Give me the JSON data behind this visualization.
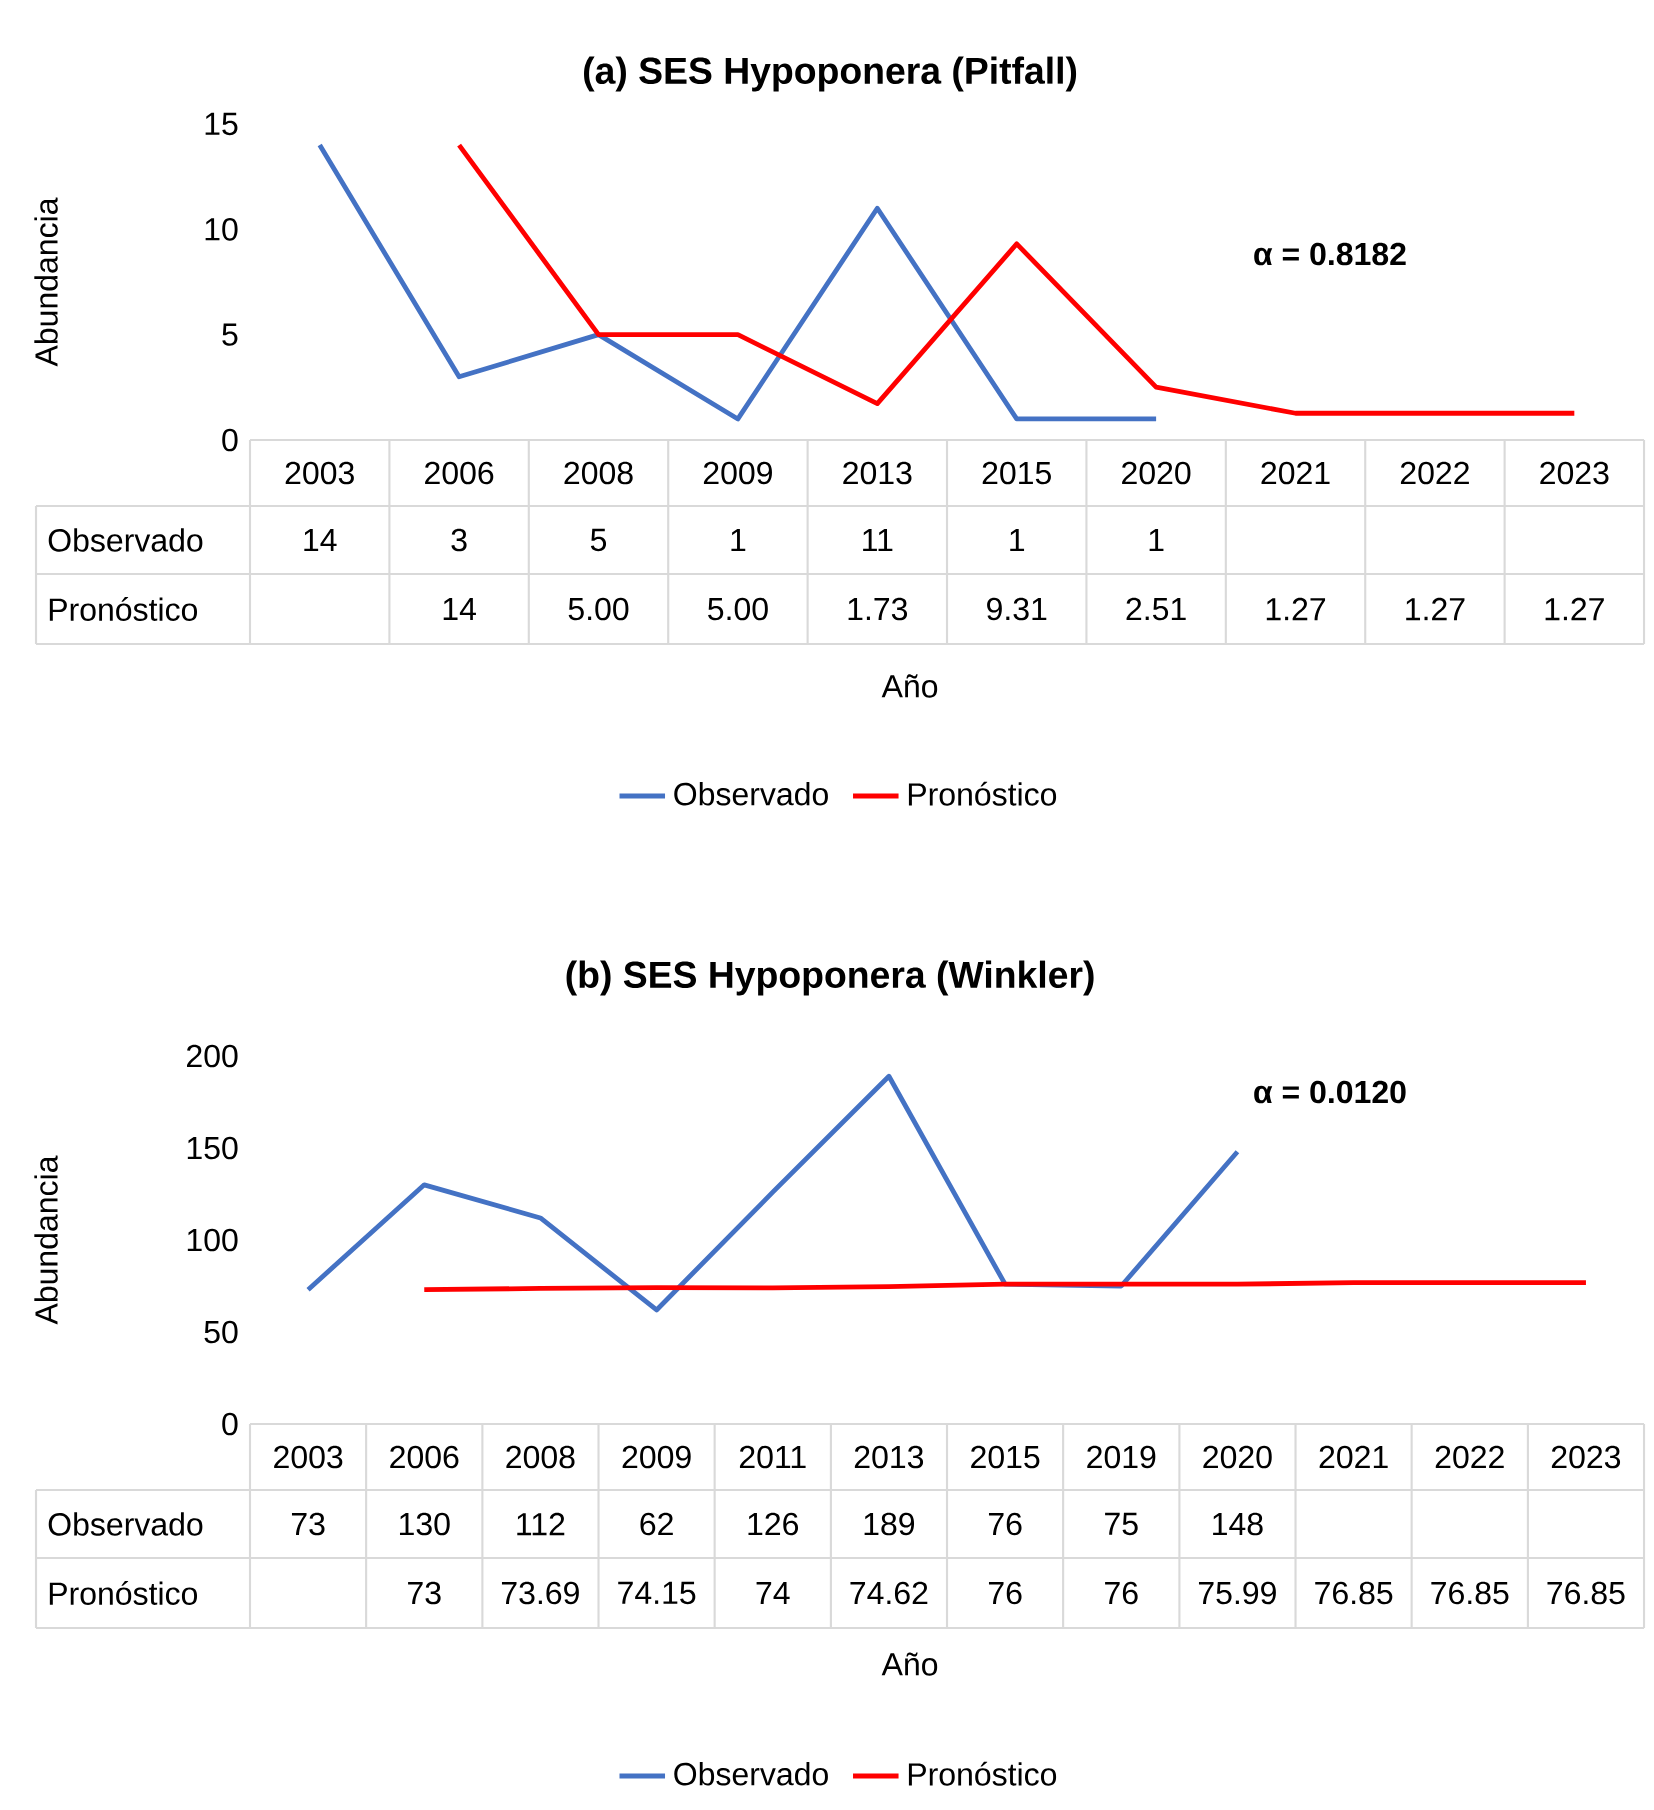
{
  "chart_data": [
    {
      "type": "line",
      "title": "(a) SES Hypoponera (Pitfall)",
      "xlabel": "Año",
      "ylabel": "Abundancia",
      "categories": [
        "2003",
        "2006",
        "2008",
        "2009",
        "2013",
        "2015",
        "2020",
        "2021",
        "2022",
        "2023"
      ],
      "series": [
        {
          "name": "Observado",
          "color": "#4472c4",
          "values": [
            14,
            3,
            5,
            1,
            11,
            1,
            1,
            null,
            null,
            null
          ],
          "value_labels": [
            "14",
            "3",
            "5",
            "1",
            "11",
            "1",
            "1",
            null,
            null,
            null
          ]
        },
        {
          "name": "Pronóstico",
          "color": "#ff0000",
          "values": [
            null,
            14,
            5.0,
            5.0,
            1.73,
            9.31,
            2.51,
            1.27,
            1.27,
            1.27
          ],
          "value_labels": [
            null,
            "14",
            "5.00",
            "5.00",
            "1.73",
            "9.31",
            "2.51",
            "1.27",
            "1.27",
            "1.27"
          ]
        }
      ],
      "ylim": [
        0,
        15
      ],
      "yticks": [
        0,
        5,
        10,
        15
      ],
      "legend": "bottom",
      "annotations": [
        "α = 0.8182"
      ]
    },
    {
      "type": "line",
      "title": "(b) SES Hypoponera (Winkler)",
      "xlabel": "Año",
      "ylabel": "Abundancia",
      "categories": [
        "2003",
        "2006",
        "2008",
        "2009",
        "2011",
        "2013",
        "2015",
        "2019",
        "2020",
        "2021",
        "2022",
        "2023"
      ],
      "series": [
        {
          "name": "Observado",
          "color": "#4472c4",
          "values": [
            73,
            130,
            112,
            62,
            126,
            189,
            76,
            75,
            148,
            null,
            null,
            null
          ],
          "value_labels": [
            "73",
            "130",
            "112",
            "62",
            "126",
            "189",
            "76",
            "75",
            "148",
            null,
            null,
            null
          ]
        },
        {
          "name": "Pronóstico",
          "color": "#ff0000",
          "values": [
            null,
            73,
            73.69,
            74.15,
            74,
            74.62,
            76,
            76,
            75.99,
            76.85,
            76.85,
            76.85
          ],
          "value_labels": [
            null,
            "73",
            "73.69",
            "74.15",
            "74",
            "74.62",
            "76",
            "76",
            "75.99",
            "76.85",
            "76.85",
            "76.85"
          ]
        }
      ],
      "ylim": [
        0,
        200
      ],
      "yticks": [
        0,
        50,
        100,
        150,
        200
      ],
      "legend": "bottom",
      "annotations": [
        "α = 0.0120"
      ]
    }
  ]
}
